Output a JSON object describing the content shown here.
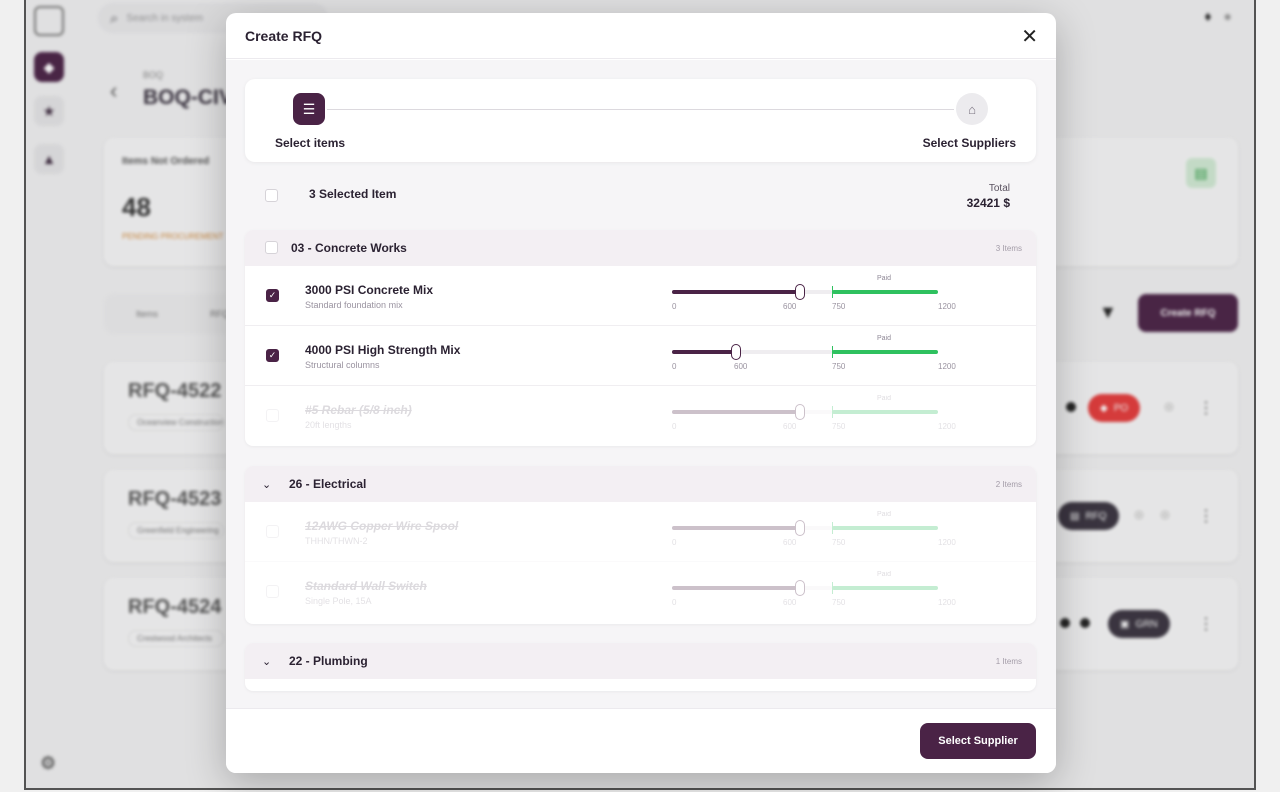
{
  "app": {
    "search_placeholder": "Search in system",
    "breadcrumb": "BOQ",
    "page_title": "BOQ-CIV",
    "stat": {
      "label": "Items Not Ordered",
      "value": "48",
      "sub": "PENDING PROCUREMENT"
    },
    "tabs": [
      "Items",
      "RFQ"
    ],
    "create_rfq_label": "Create RFQ",
    "rfq_cards": [
      {
        "id": "RFQ-4522",
        "company": "Oceanview Construction",
        "badge": "PO",
        "badge_color": "#e23b3b"
      },
      {
        "id": "RFQ-4523",
        "company": "Greenfield Engineering",
        "badge": "RFQ",
        "badge_color": "#3a3440"
      },
      {
        "id": "RFQ-4524",
        "company": "Crestwood Architects",
        "badge": "GRN",
        "badge_color": "#3a3440"
      }
    ]
  },
  "modal": {
    "title": "Create RFQ",
    "steps": [
      {
        "label": "Select items",
        "icon": "list-icon",
        "active": true
      },
      {
        "label": "Select Suppliers",
        "icon": "supplier-icon",
        "active": false
      }
    ],
    "selected_label": "3 Selected Item",
    "total_label": "Total",
    "total_value": "32421 $",
    "groups": [
      {
        "name": "03 - Concrete Works",
        "count": "3 Items",
        "collapsible": false,
        "items": [
          {
            "name": "3000 PSI Concrete Mix",
            "sub": "Standard foundation mix",
            "checked": true,
            "faded": false,
            "ordered": 600,
            "ticks": [
              "0",
              "600",
              "750",
              "1200"
            ],
            "paid_label": "Paid"
          },
          {
            "name": "4000 PSI High Strength Mix",
            "sub": "Structural columns",
            "checked": true,
            "faded": false,
            "ordered": 300,
            "ticks": [
              "0",
              "600",
              "750",
              "1200"
            ],
            "paid_label": "Paid"
          },
          {
            "name": "#5 Rebar (5/8 inch)",
            "sub": "20ft lengths",
            "checked": false,
            "faded": true,
            "ordered": 600,
            "ticks": [
              "0",
              "600",
              "750",
              "1200"
            ],
            "paid_label": "Paid"
          }
        ]
      },
      {
        "name": "26 - Electrical",
        "count": "2 Items",
        "collapsible": true,
        "items": [
          {
            "name": "12AWG Copper Wire Spool",
            "sub": "THHN/THWN-2",
            "checked": false,
            "faded": true,
            "ordered": 600,
            "ticks": [
              "0",
              "600",
              "750",
              "1200"
            ],
            "paid_label": "Paid"
          },
          {
            "name": "Standard Wall Switch",
            "sub": "Single Pole, 15A",
            "checked": false,
            "faded": true,
            "ordered": 600,
            "ticks": [
              "0",
              "600",
              "750",
              "1200"
            ],
            "paid_label": "Paid"
          }
        ]
      },
      {
        "name": "22 - Plumbing",
        "count": "1 Items",
        "collapsible": true,
        "items": []
      }
    ],
    "submit_label": "Select Supplier",
    "accent": "#4a2346",
    "paid_color": "#2ec15f"
  }
}
